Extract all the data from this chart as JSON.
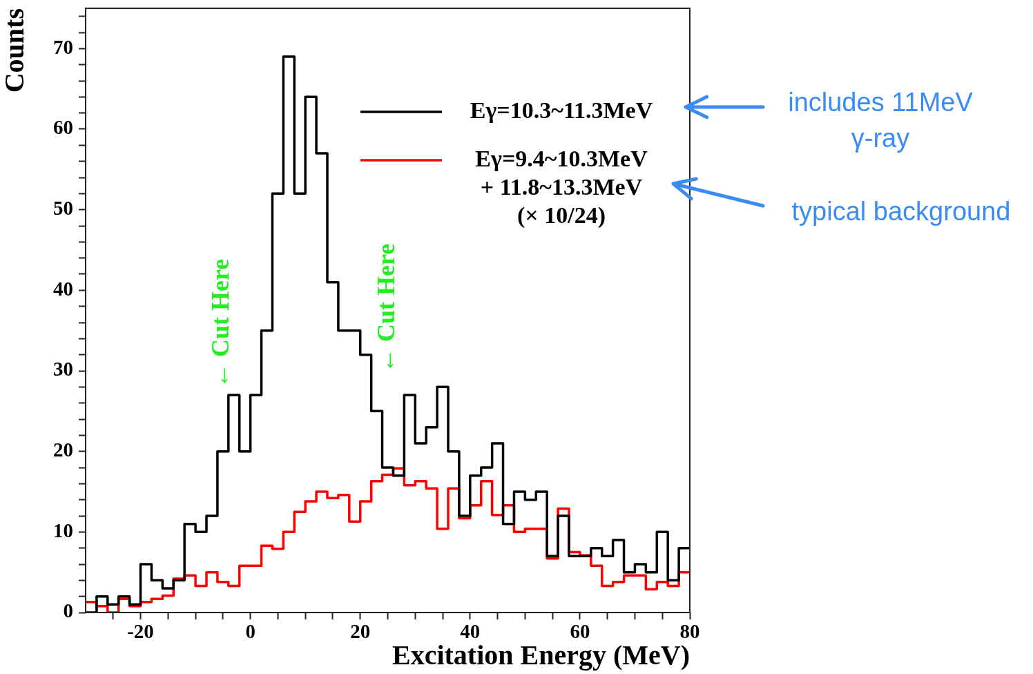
{
  "chart_data": {
    "type": "histogram",
    "xlabel": "Excitation Energy (MeV)",
    "ylabel": "Counts",
    "bins": [
      -30,
      -28,
      -26,
      -24,
      -22,
      -20,
      -18,
      -16,
      -14,
      -12,
      -10,
      -8,
      -6,
      -4,
      -2,
      0,
      2,
      4,
      6,
      8,
      10,
      12,
      14,
      16,
      18,
      20,
      22,
      24,
      26,
      28,
      30,
      32,
      34,
      36,
      38,
      40,
      42,
      44,
      46,
      48,
      50,
      52,
      54,
      56,
      58,
      60,
      62,
      64,
      66,
      68,
      70,
      72,
      74,
      76,
      78,
      80
    ],
    "series": [
      {
        "name": "Eγ=10.3~11.3MeV",
        "color": "#000000",
        "values": [
          0,
          2,
          1,
          2,
          1,
          6,
          4,
          3,
          4,
          11,
          10,
          12,
          20,
          27,
          20,
          27,
          35,
          52,
          69,
          52,
          64,
          57,
          41,
          35,
          35,
          32,
          25,
          18,
          17,
          27,
          21,
          23,
          28,
          20,
          12,
          17,
          18,
          21,
          11,
          15,
          14,
          15,
          7,
          12,
          7,
          7,
          8,
          7,
          9,
          5,
          6,
          5,
          10,
          4,
          8
        ]
      },
      {
        "name": "Eγ=9.4~10.3MeV\n+ 11.8~13.3MeV\n(× 10/24)",
        "color": "#ff0000",
        "values": [
          1.3,
          0.8,
          0,
          1.7,
          0.8,
          1.3,
          1.7,
          2.1,
          4.2,
          4.6,
          3.3,
          5,
          3.8,
          3.3,
          5.8,
          5.8,
          8.3,
          7.9,
          10,
          12.5,
          13.8,
          15,
          14.2,
          14.6,
          11.3,
          13.8,
          16.3,
          17.1,
          17.9,
          15.8,
          16.3,
          15.4,
          10.4,
          15.4,
          11.7,
          13.3,
          16.3,
          12.1,
          13.3,
          10,
          10.4,
          10.4,
          6.7,
          12.9,
          7.5,
          7.1,
          5.8,
          3.3,
          3.8,
          4.6,
          4.6,
          2.9,
          3.8,
          3.3,
          5
        ]
      }
    ],
    "xlim": [
      -30,
      80
    ],
    "xticks": [
      {
        "value": -25,
        "label": null
      },
      -20,
      {
        "value": -15,
        "label": null
      },
      {
        "value": -10,
        "label": null
      },
      {
        "value": -5,
        "label": null
      },
      0,
      {
        "value": 5,
        "label": null
      },
      {
        "value": 10,
        "label": null
      },
      {
        "value": 15,
        "label": null
      },
      20,
      {
        "value": 25,
        "label": null
      },
      {
        "value": 30,
        "label": null
      },
      {
        "value": 35,
        "label": null
      },
      40,
      {
        "value": 45,
        "label": null
      },
      {
        "value": 50,
        "label": null
      },
      {
        "value": 55,
        "label": null
      },
      60,
      {
        "value": 65,
        "label": null
      },
      {
        "value": 70,
        "label": null
      },
      {
        "value": 75,
        "label": null
      },
      80
    ],
    "ylim": [
      0,
      75
    ],
    "yticks": [
      0,
      {
        "value": 2,
        "label": null
      },
      {
        "value": 4,
        "label": null
      },
      {
        "value": 6,
        "label": null
      },
      {
        "value": 8,
        "label": null
      },
      10,
      {
        "value": 12,
        "label": null
      },
      {
        "value": 14,
        "label": null
      },
      {
        "value": 16,
        "label": null
      },
      {
        "value": 18,
        "label": null
      },
      20,
      {
        "value": 22,
        "label": null
      },
      {
        "value": 24,
        "label": null
      },
      {
        "value": 26,
        "label": null
      },
      {
        "value": 28,
        "label": null
      },
      30,
      {
        "value": 32,
        "label": null
      },
      {
        "value": 34,
        "label": null
      },
      {
        "value": 36,
        "label": null
      },
      {
        "value": 38,
        "label": null
      },
      40,
      {
        "value": 42,
        "label": null
      },
      {
        "value": 44,
        "label": null
      },
      {
        "value": 46,
        "label": null
      },
      {
        "value": 48,
        "label": null
      },
      50,
      {
        "value": 52,
        "label": null
      },
      {
        "value": 54,
        "label": null
      },
      {
        "value": 56,
        "label": null
      },
      {
        "value": 58,
        "label": null
      },
      60,
      {
        "value": 62,
        "label": null
      },
      {
        "value": 64,
        "label": null
      },
      {
        "value": 66,
        "label": null
      },
      {
        "value": 68,
        "label": null
      },
      70,
      {
        "value": 72,
        "label": null
      },
      {
        "value": 74,
        "label": null
      }
    ],
    "grid": false,
    "legend": "top right",
    "annotations": [
      "← Cut Here",
      "← Cut Here",
      "includes 11MeV\nγ-ray",
      "typical background"
    ]
  }
}
